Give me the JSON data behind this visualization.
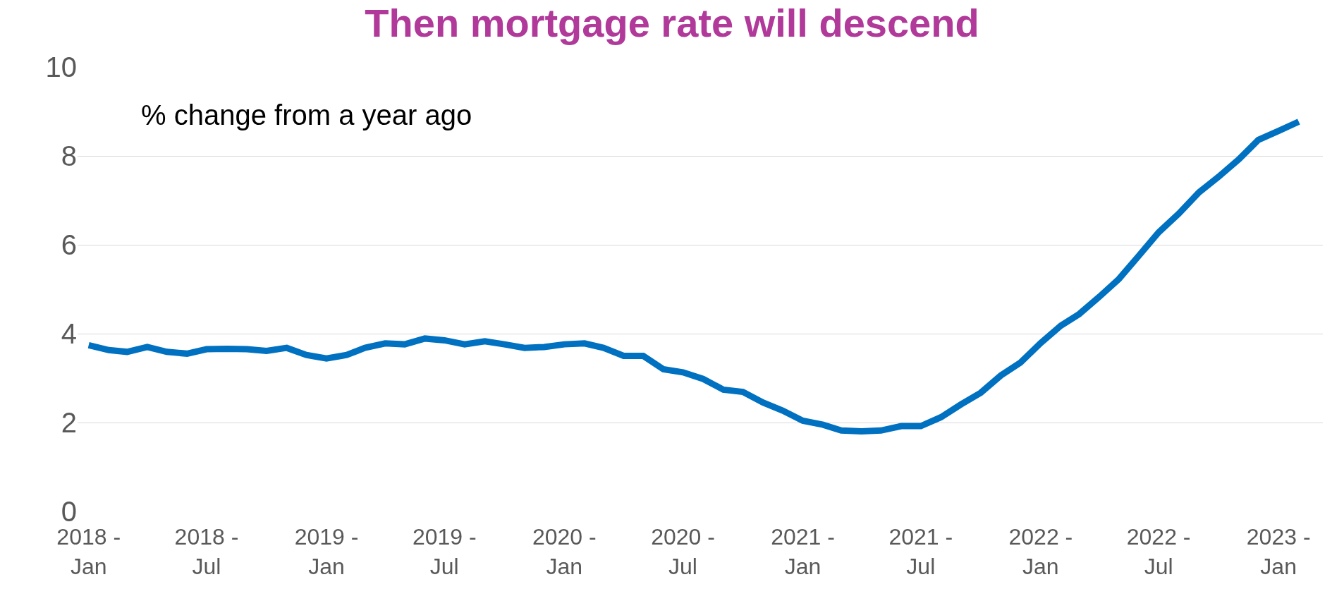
{
  "chart_data": {
    "type": "line",
    "title": "Then mortgage rate will descend",
    "subtitle": "% change from a year ago",
    "x": [
      "2018-01",
      "2018-02",
      "2018-03",
      "2018-04",
      "2018-05",
      "2018-06",
      "2018-07",
      "2018-08",
      "2018-09",
      "2018-10",
      "2018-11",
      "2018-12",
      "2019-01",
      "2019-02",
      "2019-03",
      "2019-04",
      "2019-05",
      "2019-06",
      "2019-07",
      "2019-08",
      "2019-09",
      "2019-10",
      "2019-11",
      "2019-12",
      "2020-01",
      "2020-02",
      "2020-03",
      "2020-04",
      "2020-05",
      "2020-06",
      "2020-07",
      "2020-08",
      "2020-09",
      "2020-10",
      "2020-11",
      "2020-12",
      "2021-01",
      "2021-02",
      "2021-03",
      "2021-04",
      "2021-05",
      "2021-06",
      "2021-07",
      "2021-08",
      "2021-09",
      "2021-10",
      "2021-11",
      "2021-12",
      "2022-01",
      "2022-02",
      "2022-03",
      "2022-04",
      "2022-05",
      "2022-06",
      "2022-07",
      "2022-08",
      "2022-09",
      "2022-10",
      "2022-11",
      "2022-12",
      "2023-01",
      "2023-02"
    ],
    "series": [
      {
        "color": "#0070c0",
        "values": [
          3.74,
          3.63,
          3.59,
          3.7,
          3.59,
          3.55,
          3.65,
          3.66,
          3.65,
          3.61,
          3.68,
          3.52,
          3.44,
          3.52,
          3.68,
          3.78,
          3.76,
          3.89,
          3.85,
          3.76,
          3.83,
          3.76,
          3.68,
          3.7,
          3.76,
          3.78,
          3.68,
          3.5,
          3.5,
          3.2,
          3.13,
          2.98,
          2.74,
          2.69,
          2.45,
          2.27,
          2.04,
          1.95,
          1.82,
          1.8,
          1.82,
          1.92,
          1.92,
          2.12,
          2.41,
          2.67,
          3.06,
          3.35,
          3.79,
          4.18,
          4.44,
          4.83,
          5.23,
          5.76,
          6.28,
          6.7,
          7.18,
          7.53,
          7.92,
          8.36,
          8.56,
          8.77
        ]
      }
    ],
    "xlim": [
      "2017-12-15",
      "2023-03-10"
    ],
    "xticks": [
      {
        "value": "2018-01",
        "label": "2018 -\nJan"
      },
      {
        "value": "2018-07",
        "label": "2018 -\nJul"
      },
      {
        "value": "2019-01",
        "label": "2019 -\nJan"
      },
      {
        "value": "2019-07",
        "label": "2019 -\nJul"
      },
      {
        "value": "2020-01",
        "label": "2020 -\nJan"
      },
      {
        "value": "2020-07",
        "label": "2020 -\nJul"
      },
      {
        "value": "2021-01",
        "label": "2021 -\nJan"
      },
      {
        "value": "2021-07",
        "label": "2021 -\nJul"
      },
      {
        "value": "2022-01",
        "label": "2022 -\nJan"
      },
      {
        "value": "2022-07",
        "label": "2022 -\nJul"
      },
      {
        "value": "2023-01",
        "label": "2023 -\nJan"
      }
    ],
    "ylim": [
      0,
      10
    ],
    "yticks": [
      0,
      2,
      4,
      6,
      8,
      10
    ],
    "grid": "y",
    "marker": "none",
    "line_style": "solid"
  }
}
